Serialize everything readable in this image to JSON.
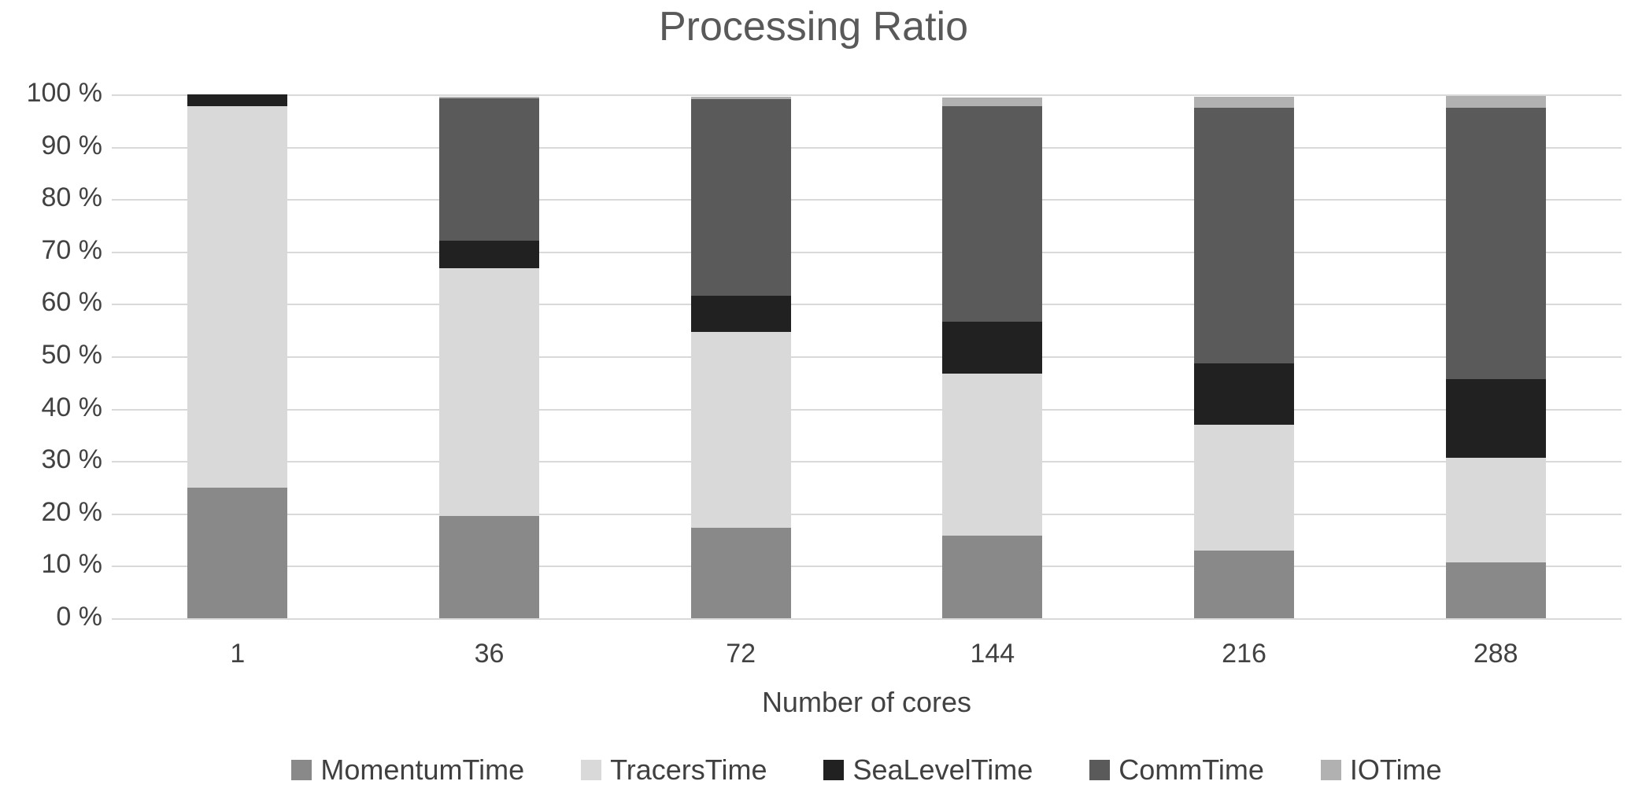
{
  "chart_data": {
    "type": "bar",
    "stacked": true,
    "title": "Processing Ratio",
    "xlabel": "Number of cores",
    "ylabel": "",
    "categories": [
      "1",
      "36",
      "72",
      "144",
      "216",
      "288"
    ],
    "series": [
      {
        "name": "MomentumTime",
        "color": "#898989",
        "values": [
          25.0,
          19.6,
          17.3,
          15.8,
          12.9,
          10.7
        ]
      },
      {
        "name": "TracersTime",
        "color": "#d9d9d9",
        "values": [
          72.8,
          47.2,
          37.3,
          30.9,
          24.0,
          20.0
        ]
      },
      {
        "name": "SeaLevelTime",
        "color": "#212121",
        "values": [
          2.2,
          5.3,
          6.9,
          9.9,
          11.8,
          15.0
        ]
      },
      {
        "name": "CommTime",
        "color": "#5a5a5a",
        "values": [
          0.0,
          27.2,
          37.6,
          41.2,
          48.7,
          51.7
        ]
      },
      {
        "name": "IOTime",
        "color": "#b1b1b1",
        "values": [
          0.0,
          0.3,
          0.5,
          1.6,
          2.2,
          2.3
        ]
      }
    ],
    "ylim": [
      0,
      100
    ],
    "yticks": [
      "100 %",
      "90 %",
      "80 %",
      "70 %",
      "60 %",
      "50 %",
      "40 %",
      "30 %",
      "20 %",
      "10 %",
      "0 %"
    ],
    "grid": true,
    "legend_position": "bottom"
  },
  "colors": {
    "title": "#595959",
    "axis_text": "#424242",
    "gridline": "#d9d9d9",
    "background": "#ffffff"
  }
}
